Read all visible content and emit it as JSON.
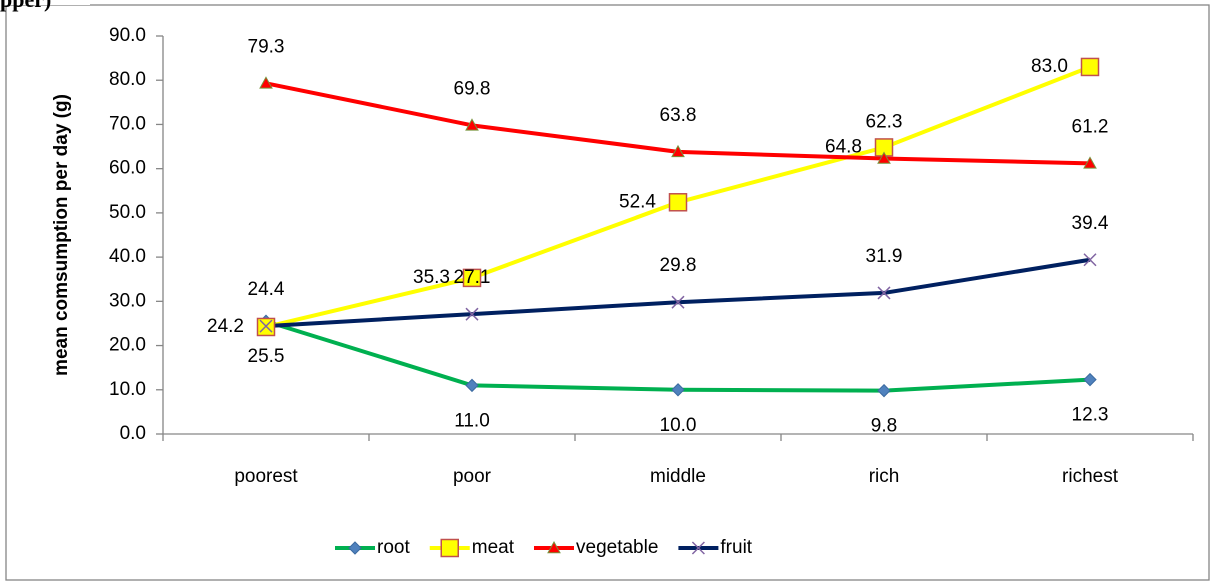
{
  "chart_data": {
    "type": "line",
    "title": "pper)",
    "y_label": "mean comsumption per day (g)",
    "categories": [
      "poorest",
      "poor",
      "middle",
      "rich",
      "richest"
    ],
    "series": [
      {
        "name": "root",
        "color": "#00b050",
        "marker": "diamond",
        "marker_color": "#4f81bd",
        "values": [
          25.5,
          11.0,
          10.0,
          9.8,
          12.3
        ],
        "value_labels": [
          "25.5",
          "11.0",
          "10.0",
          "9.8",
          "12.3"
        ]
      },
      {
        "name": "meat",
        "color": "#ffff00",
        "marker": "square",
        "marker_color": "#ffff00",
        "values": [
          24.2,
          35.3,
          52.4,
          64.8,
          83.0
        ],
        "value_labels": [
          "24.2",
          "35.3",
          "52.4",
          "64.8",
          "83.0"
        ]
      },
      {
        "name": "vegetable",
        "color": "#ff0000",
        "marker": "triangle",
        "marker_color": "#ff0000",
        "values": [
          79.3,
          69.8,
          63.8,
          62.3,
          61.2
        ],
        "value_labels": [
          "79.3",
          "69.8",
          "63.8",
          "62.3",
          "61.2"
        ]
      },
      {
        "name": "fruit",
        "color": "#002060",
        "marker": "x",
        "marker_color": "#8064a2",
        "values": [
          24.4,
          27.1,
          29.8,
          31.9,
          39.4
        ],
        "value_labels": [
          "24.4",
          "27.1",
          "29.8",
          "31.9",
          "39.4"
        ]
      }
    ],
    "ylim": [
      0,
      90
    ],
    "yticks": [
      {
        "value": 0,
        "label": "0.0"
      },
      {
        "value": 10,
        "label": "10.0"
      },
      {
        "value": 20,
        "label": "20.0"
      },
      {
        "value": 30,
        "label": "30.0"
      },
      {
        "value": 40,
        "label": "40.0"
      },
      {
        "value": 50,
        "label": "50.0"
      },
      {
        "value": 60,
        "label": "60.0"
      },
      {
        "value": 70,
        "label": "70.0"
      },
      {
        "value": 80,
        "label": "80.0"
      },
      {
        "value": 90,
        "label": "90.0"
      }
    ],
    "legend": "bottom",
    "grid": false
  }
}
